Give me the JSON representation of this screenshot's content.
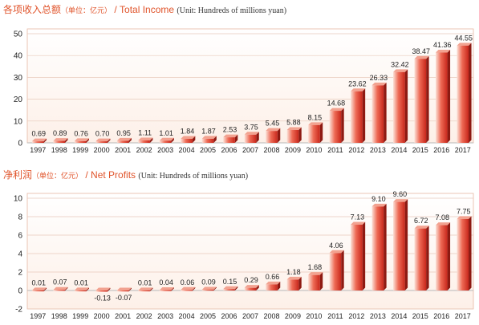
{
  "colors": {
    "title": "#e0532a",
    "bar_light": "#fbe0d6",
    "bar_dark": "#c8281c",
    "bar_top": "#f2a290",
    "bar_side": "#8e1a12",
    "panel_light": "#fdf0e8",
    "panel_border": "#e6b7a3",
    "grid": "#e8c9bb",
    "text": "#222222"
  },
  "chart_data": [
    {
      "type": "bar",
      "title_cn": "各项收入总额",
      "unit_cn": "（单位：亿元）",
      "title_en": "/ Total Income",
      "unit_en": "(Unit: Hundreds of millions yuan)",
      "categories": [
        "1997",
        "1998",
        "1999",
        "2000",
        "2001",
        "2002",
        "2003",
        "2004",
        "2005",
        "2006",
        "2007",
        "2008",
        "2009",
        "2010",
        "2011",
        "2012",
        "2013",
        "2014",
        "2015",
        "2016",
        "2017"
      ],
      "values": [
        0.69,
        0.89,
        0.76,
        0.7,
        0.95,
        1.11,
        1.01,
        1.84,
        1.87,
        2.53,
        3.75,
        5.45,
        5.88,
        8.15,
        14.68,
        23.62,
        26.33,
        32.42,
        38.47,
        41.36,
        44.55
      ],
      "labels": [
        "0.69",
        "0.89",
        "0.76",
        "0.70",
        "0.95",
        "1.11",
        "1.01",
        "1.84",
        "1.87",
        "2.53",
        "3.75",
        "5.45",
        "5.88",
        "8.15",
        "14.68",
        "23.62",
        "26.33",
        "32.42",
        "38.47",
        "41.36",
        "44.55"
      ],
      "yticks": [
        0,
        10,
        20,
        30,
        40,
        50
      ],
      "ylim": [
        0,
        50
      ],
      "grid": true
    },
    {
      "type": "bar",
      "title_cn": "净利润",
      "unit_cn": "（单位：亿元）",
      "title_en": "/ Net Profits",
      "unit_en": "(Unit: Hundreds of millions yuan)",
      "categories": [
        "1997",
        "1998",
        "1999",
        "2000",
        "2001",
        "2002",
        "2003",
        "2004",
        "2005",
        "2006",
        "2007",
        "2008",
        "2009",
        "2010",
        "2011",
        "2012",
        "2013",
        "2014",
        "2015",
        "2016",
        "2017"
      ],
      "values": [
        0.01,
        0.07,
        0.01,
        -0.13,
        -0.07,
        0.01,
        0.04,
        0.06,
        0.09,
        0.15,
        0.29,
        0.66,
        1.18,
        1.68,
        4.06,
        7.13,
        9.1,
        9.6,
        6.72,
        7.08,
        7.75
      ],
      "labels": [
        "0.01",
        "0.07",
        "0.01",
        "-0.13",
        "-0.07",
        "0.01",
        "0.04",
        "0.06",
        "0.09",
        "0.15",
        "0.29",
        "0.66",
        "1.18",
        "1.68",
        "4.06",
        "7.13",
        "9.10",
        "9.60",
        "6.72",
        "7.08",
        "7.75"
      ],
      "yticks": [
        -2,
        0,
        2,
        4,
        6,
        8,
        10
      ],
      "ylim": [
        -2,
        10
      ],
      "grid": true
    }
  ]
}
